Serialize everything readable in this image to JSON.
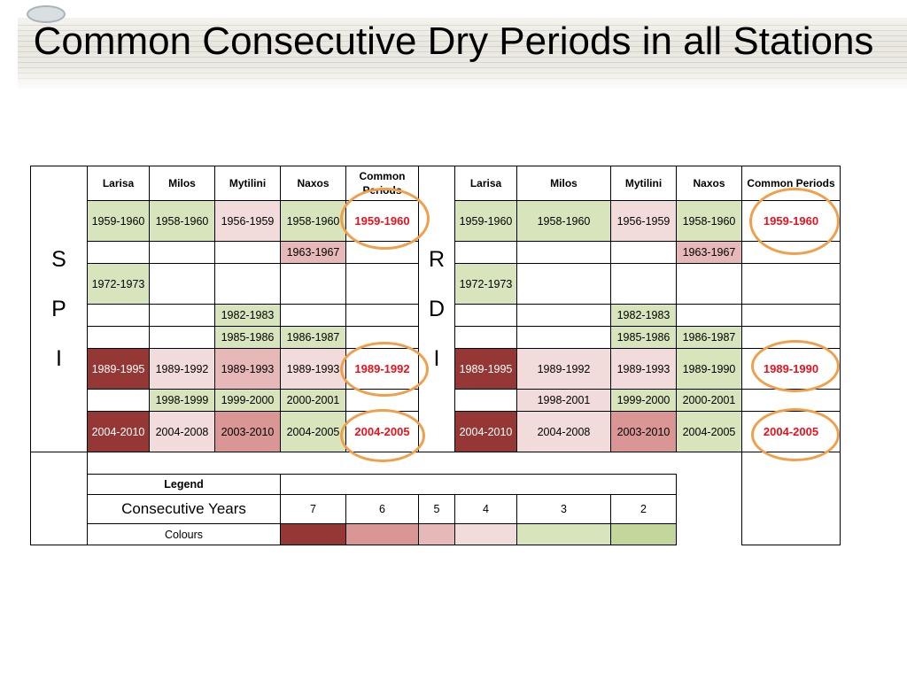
{
  "title": "Common Consecutive Dry Periods in all Stations",
  "headers": [
    "Larisa",
    "Milos",
    "Mytilini",
    "Naxos",
    "Common Periods"
  ],
  "spi_label": [
    "S",
    "P",
    "I"
  ],
  "rdi_label": [
    "R",
    "D",
    "I"
  ],
  "spi_rows": [
    [
      {
        "t": "1959-1960",
        "c": "c3"
      },
      {
        "t": "1958-1960",
        "c": "c3"
      },
      {
        "t": "1956-1959",
        "c": "c4"
      },
      {
        "t": "1958-1960",
        "c": "c3"
      },
      {
        "t": "1959-1960",
        "c": "red"
      }
    ],
    [
      {
        "t": "",
        "c": ""
      },
      {
        "t": "",
        "c": ""
      },
      {
        "t": "",
        "c": ""
      },
      {
        "t": "1963-1967",
        "c": "c5"
      },
      {
        "t": "",
        "c": ""
      }
    ],
    [
      {
        "t": "1972-1973",
        "c": "c3"
      },
      {
        "t": "",
        "c": ""
      },
      {
        "t": "",
        "c": ""
      },
      {
        "t": "",
        "c": ""
      },
      {
        "t": "",
        "c": ""
      }
    ],
    [
      {
        "t": "",
        "c": ""
      },
      {
        "t": "",
        "c": ""
      },
      {
        "t": "1982-1983",
        "c": "c3"
      },
      {
        "t": "",
        "c": ""
      },
      {
        "t": "",
        "c": ""
      }
    ],
    [
      {
        "t": "",
        "c": ""
      },
      {
        "t": "",
        "c": ""
      },
      {
        "t": "1985-1986",
        "c": "c3"
      },
      {
        "t": "1986-1987",
        "c": "c3"
      },
      {
        "t": "",
        "c": ""
      }
    ],
    [
      {
        "t": "1989-1995",
        "c": "c7"
      },
      {
        "t": "1989-1992",
        "c": "c4"
      },
      {
        "t": "1989-1993",
        "c": "c5"
      },
      {
        "t": "1989-1993",
        "c": "c4"
      },
      {
        "t": "1989-1992",
        "c": "red"
      }
    ],
    [
      {
        "t": "",
        "c": ""
      },
      {
        "t": "1998-1999",
        "c": "c3"
      },
      {
        "t": "1999-2000",
        "c": "c3"
      },
      {
        "t": "2000-2001",
        "c": "c3"
      },
      {
        "t": "",
        "c": ""
      }
    ],
    [
      {
        "t": "2004-2010",
        "c": "c7"
      },
      {
        "t": "2004-2008",
        "c": "c4"
      },
      {
        "t": "2003-2010",
        "c": "c6"
      },
      {
        "t": "2004-2005",
        "c": "c3"
      },
      {
        "t": "2004-2005",
        "c": "red"
      }
    ]
  ],
  "rdi_rows": [
    [
      {
        "t": "1959-1960",
        "c": "c3"
      },
      {
        "t": "1958-1960",
        "c": "c3"
      },
      {
        "t": "1956-1959",
        "c": "c4"
      },
      {
        "t": "1958-1960",
        "c": "c3"
      },
      {
        "t": "1959-1960",
        "c": "red"
      }
    ],
    [
      {
        "t": "",
        "c": ""
      },
      {
        "t": "",
        "c": ""
      },
      {
        "t": "",
        "c": ""
      },
      {
        "t": "1963-1967",
        "c": "c5"
      },
      {
        "t": "",
        "c": ""
      }
    ],
    [
      {
        "t": "1972-1973",
        "c": "c3"
      },
      {
        "t": "",
        "c": ""
      },
      {
        "t": "",
        "c": ""
      },
      {
        "t": "",
        "c": ""
      },
      {
        "t": "",
        "c": ""
      }
    ],
    [
      {
        "t": "",
        "c": ""
      },
      {
        "t": "",
        "c": ""
      },
      {
        "t": "1982-1983",
        "c": "c3"
      },
      {
        "t": "",
        "c": ""
      },
      {
        "t": "",
        "c": ""
      }
    ],
    [
      {
        "t": "",
        "c": ""
      },
      {
        "t": "",
        "c": ""
      },
      {
        "t": "1985-1986",
        "c": "c3"
      },
      {
        "t": "1986-1987",
        "c": "c3"
      },
      {
        "t": "",
        "c": ""
      }
    ],
    [
      {
        "t": "1989-1995",
        "c": "c7"
      },
      {
        "t": "1989-1992",
        "c": "c4"
      },
      {
        "t": "1989-1993",
        "c": "c4"
      },
      {
        "t": "1989-1990",
        "c": "c3"
      },
      {
        "t": "1989-1990",
        "c": "red"
      }
    ],
    [
      {
        "t": "",
        "c": ""
      },
      {
        "t": "1998-2001",
        "c": "c4"
      },
      {
        "t": "1999-2000",
        "c": "c3"
      },
      {
        "t": "2000-2001",
        "c": "c3"
      },
      {
        "t": "",
        "c": ""
      }
    ],
    [
      {
        "t": "2004-2010",
        "c": "c7"
      },
      {
        "t": "2004-2008",
        "c": "c4"
      },
      {
        "t": "2003-2010",
        "c": "c6"
      },
      {
        "t": "2004-2005",
        "c": "c3"
      },
      {
        "t": "2004-2005",
        "c": "red"
      }
    ]
  ],
  "legend": {
    "title": "Legend",
    "years_label": "Consecutive Years",
    "colours_label": "Colours",
    "years": [
      "7",
      "6",
      "5",
      "4",
      "3",
      "2"
    ],
    "colors": [
      "#953734",
      "#da9694",
      "#e6b9b8",
      "#f2dcdb",
      "#d7e4bc",
      "#c3d69b"
    ]
  },
  "highlight_color": "#f0a04a",
  "period_text_color": "#e5131d"
}
